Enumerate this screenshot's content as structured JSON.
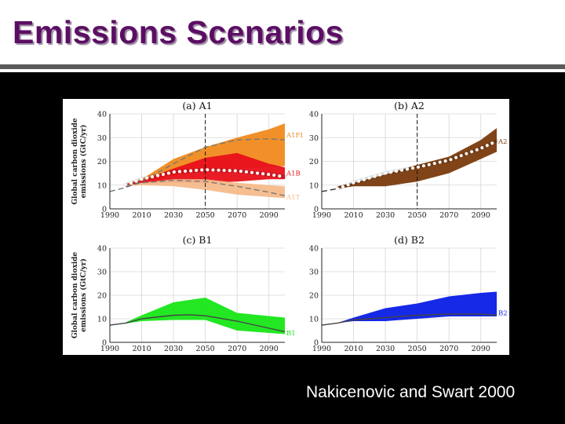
{
  "slide": {
    "title": "Emissions Scenarios",
    "credit": "Nakicenovic and Swart 2000"
  },
  "colors": {
    "title": "#5b0e63",
    "a1fi": "#f08a1e",
    "a1b": "#e8101a",
    "a1t": "#f5bb8a",
    "a2": "#7a3a0c",
    "b1": "#17e617",
    "b2": "#0a1ee6"
  },
  "chart_data": [
    {
      "type": "area",
      "title": "(a) A1",
      "ylabel": "Global carbon dioxide emissions (GtC/yr)",
      "x": [
        1990,
        2010,
        2030,
        2050,
        2070,
        2090
      ],
      "ylim": [
        0,
        40
      ],
      "yticks": [
        0,
        10,
        20,
        30,
        40
      ],
      "xticks": [
        1990,
        2010,
        2030,
        2050,
        2070,
        2090
      ],
      "vline": 2050,
      "series": [
        {
          "name": "A1FI",
          "color": "#f08a1e",
          "x": [
            2000,
            2010,
            2030,
            2050,
            2070,
            2090,
            2100
          ],
          "upper": [
            10.5,
            12.5,
            21,
            26,
            30,
            33.5,
            36
          ],
          "lower": [
            9.5,
            11,
            14,
            16,
            17,
            17.5,
            18
          ]
        },
        {
          "name": "A1B",
          "color": "#e8101a",
          "x": [
            2000,
            2010,
            2030,
            2050,
            2070,
            2090,
            2100
          ],
          "upper": [
            10.3,
            12,
            17,
            21.5,
            23.5,
            19,
            17.5
          ],
          "lower": [
            9.6,
            10.5,
            11,
            11,
            11.5,
            12.5,
            12.5
          ]
        },
        {
          "name": "A1T",
          "color": "#f5bb8a",
          "x": [
            2000,
            2010,
            2030,
            2050,
            2070,
            2090,
            2100
          ],
          "upper": [
            10,
            11,
            12.5,
            12.5,
            11,
            10,
            9.5
          ],
          "lower": [
            9.5,
            10,
            9.5,
            8,
            6,
            5,
            4.5
          ]
        }
      ],
      "lines": [
        {
          "name": "A1FI-median",
          "style": "dashed",
          "color": "#777777",
          "x": [
            1990,
            2000,
            2010,
            2030,
            2050,
            2070,
            2090,
            2100
          ],
          "y": [
            7.3,
            9,
            11.5,
            19,
            26,
            29,
            29.5,
            29
          ]
        },
        {
          "name": "A1B-marker",
          "style": "dotted",
          "color": "#ffffff",
          "x": [
            2000,
            2010,
            2030,
            2050,
            2070,
            2090,
            2100
          ],
          "y": [
            10,
            12.5,
            15.5,
            16.5,
            16,
            14.5,
            13.5
          ]
        },
        {
          "name": "A1T-median",
          "style": "dashed",
          "color": "#777777",
          "x": [
            2000,
            2010,
            2030,
            2050,
            2070,
            2090,
            2100
          ],
          "y": [
            9.5,
            11,
            12,
            11.5,
            9.5,
            7,
            5.5
          ]
        }
      ],
      "labels": [
        {
          "text": "A1FI",
          "y": 31,
          "color": "#f08a1e"
        },
        {
          "text": "A1B",
          "y": 15,
          "color": "#e8101a"
        },
        {
          "text": "A1T",
          "y": 5,
          "color": "#f5bb8a"
        }
      ]
    },
    {
      "type": "area",
      "title": "(b) A2",
      "ylabel": "",
      "x": [
        1990,
        2010,
        2030,
        2050,
        2070,
        2090
      ],
      "ylim": [
        0,
        40
      ],
      "yticks": [
        0,
        10,
        20,
        30,
        40
      ],
      "xticks": [
        1990,
        2010,
        2030,
        2050,
        2070,
        2090
      ],
      "vline": 2050,
      "series": [
        {
          "name": "A2",
          "color": "#7a3a0c",
          "x": [
            2000,
            2010,
            2030,
            2050,
            2070,
            2090,
            2100
          ],
          "upper": [
            9.5,
            11,
            14.5,
            18.5,
            22,
            29,
            34
          ],
          "lower": [
            8.5,
            9.5,
            9.5,
            11.5,
            15,
            21,
            24
          ]
        }
      ],
      "lines": [
        {
          "name": "A2-pre",
          "style": "dashed",
          "color": "#333333",
          "x": [
            1990,
            2000
          ],
          "y": [
            7.3,
            8.5
          ]
        },
        {
          "name": "A2-marker",
          "style": "dotted",
          "color": "#ffffff",
          "x": [
            2000,
            2010,
            2030,
            2050,
            2070,
            2090,
            2100
          ],
          "y": [
            8.5,
            11,
            15,
            17.5,
            20.5,
            25.5,
            28.5
          ]
        }
      ],
      "labels": [
        {
          "text": "A2",
          "y": 28.5,
          "color": "#7a3a0c"
        }
      ]
    },
    {
      "type": "area",
      "title": "(c) B1",
      "ylabel": "Global carbon dioxide emissions (GtC/yr)",
      "x": [
        1990,
        2010,
        2030,
        2050,
        2070,
        2090
      ],
      "ylim": [
        0,
        40
      ],
      "yticks": [
        0,
        10,
        20,
        30,
        40
      ],
      "xticks": [
        1990,
        2010,
        2030,
        2050,
        2070,
        2090
      ],
      "series": [
        {
          "name": "B1",
          "color": "#17e617",
          "x": [
            2000,
            2010,
            2030,
            2050,
            2070,
            2100
          ],
          "upper": [
            8.5,
            11.5,
            17,
            19,
            12.5,
            10.5
          ],
          "lower": [
            8,
            9,
            9.5,
            9.5,
            5,
            3.5
          ]
        }
      ],
      "lines": [
        {
          "name": "B1-median",
          "style": "solid",
          "color": "#444444",
          "x": [
            1990,
            2000,
            2010,
            2030,
            2040,
            2050,
            2070,
            2090,
            2100
          ],
          "y": [
            7.3,
            8.2,
            10,
            11.5,
            11.7,
            11.3,
            9,
            6,
            4.5
          ]
        }
      ],
      "labels": [
        {
          "text": "B1",
          "y": 4,
          "color": "#17e617"
        }
      ]
    },
    {
      "type": "area",
      "title": "(d) B2",
      "ylabel": "",
      "x": [
        1990,
        2010,
        2030,
        2050,
        2070,
        2090
      ],
      "ylim": [
        0,
        40
      ],
      "yticks": [
        0,
        10,
        20,
        30,
        40
      ],
      "xticks": [
        1990,
        2010,
        2030,
        2050,
        2070,
        2090
      ],
      "series": [
        {
          "name": "B2",
          "color": "#0a1ee6",
          "x": [
            2000,
            2010,
            2030,
            2050,
            2070,
            2090,
            2100
          ],
          "upper": [
            8.3,
            10.5,
            14.5,
            16.5,
            19.5,
            21,
            21.5
          ],
          "lower": [
            8.2,
            9,
            9,
            10,
            11,
            11,
            11
          ]
        }
      ],
      "lines": [
        {
          "name": "B2-median",
          "style": "solid",
          "color": "#444444",
          "x": [
            1990,
            2000,
            2010,
            2030,
            2050,
            2070,
            2090,
            2100
          ],
          "y": [
            7.3,
            8.2,
            9.5,
            10.5,
            11.5,
            12,
            12,
            11.5
          ]
        }
      ],
      "labels": [
        {
          "text": "B2",
          "y": 12.5,
          "color": "#0a1ee6"
        }
      ]
    }
  ]
}
